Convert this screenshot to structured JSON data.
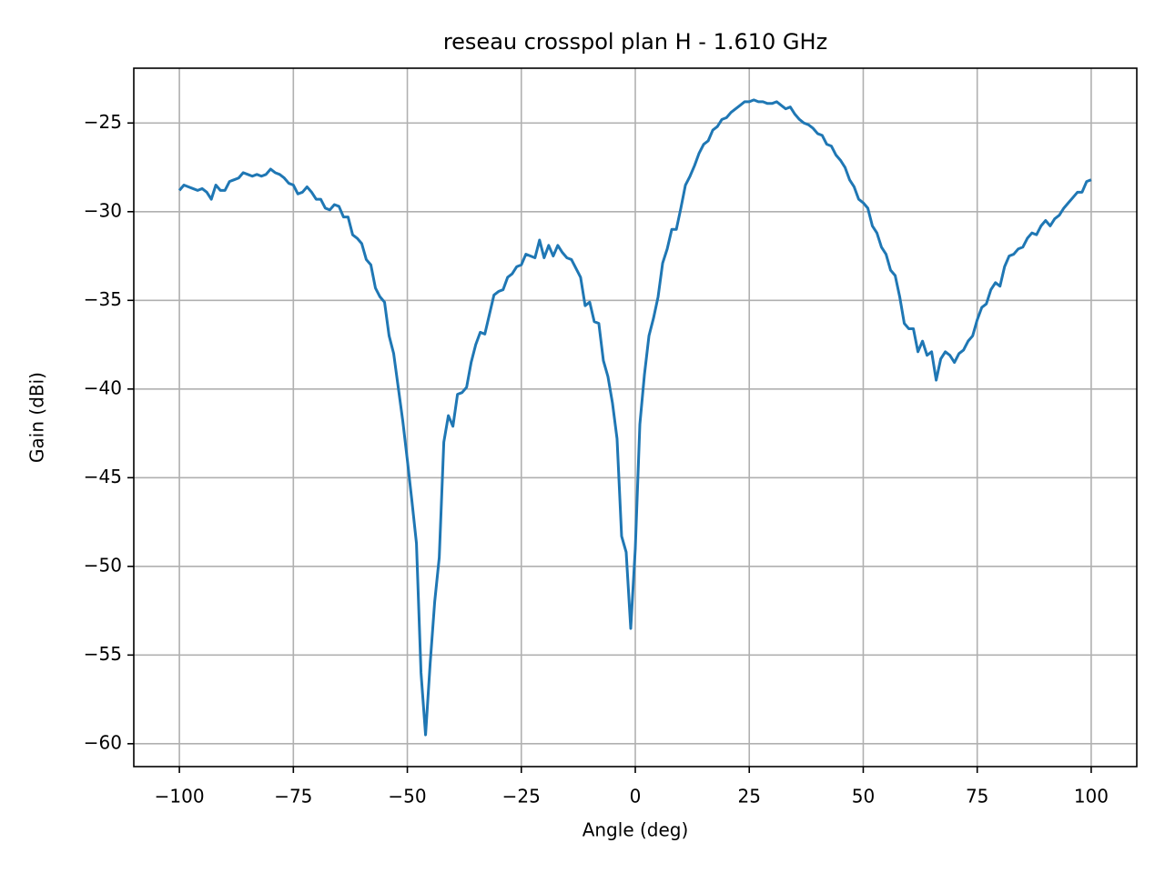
{
  "chart_data": {
    "type": "line",
    "title": "reseau crosspol plan H - 1.610 GHz",
    "x_label": "Angle (deg)",
    "y_label": "Gain (dBi)",
    "color": "#1f77b4",
    "grid": true,
    "xlim": [
      -110,
      110
    ],
    "ylim": [
      -61.29,
      -21.91
    ],
    "xticks": [
      {
        "value": -100,
        "label": "−100"
      },
      {
        "value": -75,
        "label": "−75"
      },
      {
        "value": -50,
        "label": "−50"
      },
      {
        "value": -25,
        "label": "−25"
      },
      0,
      25,
      50,
      75,
      100
    ],
    "yticks": [
      {
        "value": -60,
        "label": "−60"
      },
      {
        "value": -55,
        "label": "−55"
      },
      {
        "value": -50,
        "label": "−50"
      },
      {
        "value": -45,
        "label": "−45"
      },
      {
        "value": -40,
        "label": "−40"
      },
      {
        "value": -35,
        "label": "−35"
      },
      {
        "value": -30,
        "label": "−30"
      },
      {
        "value": -25,
        "label": "−25"
      }
    ],
    "x": [
      -100,
      -99,
      -98,
      -97,
      -96,
      -95,
      -94,
      -93,
      -92,
      -91,
      -90,
      -89,
      -88,
      -87,
      -86,
      -85,
      -84,
      -83,
      -82,
      -81,
      -80,
      -79,
      -78,
      -77,
      -76,
      -75,
      -74,
      -73,
      -72,
      -71,
      -70,
      -69,
      -68,
      -67,
      -66,
      -65,
      -64,
      -63,
      -62,
      -61,
      -60,
      -59,
      -58,
      -57,
      -56,
      -55,
      -54,
      -53,
      -52,
      -51,
      -50,
      -49,
      -48,
      -47,
      -46,
      -45,
      -44,
      -43,
      -42,
      -41,
      -40,
      -39,
      -38,
      -37,
      -36,
      -35,
      -34,
      -33,
      -32,
      -31,
      -30,
      -29,
      -28,
      -27,
      -26,
      -25,
      -24,
      -23,
      -22,
      -21,
      -20,
      -19,
      -18,
      -17,
      -16,
      -15,
      -14,
      -13,
      -12,
      -11,
      -10,
      -9,
      -8,
      -7,
      -6,
      -5,
      -4,
      -3,
      -2,
      -1,
      0,
      1,
      2,
      3,
      4,
      5,
      6,
      7,
      8,
      9,
      10,
      11,
      12,
      13,
      14,
      15,
      16,
      17,
      18,
      19,
      20,
      21,
      22,
      23,
      24,
      25,
      26,
      27,
      28,
      29,
      30,
      31,
      32,
      33,
      34,
      35,
      36,
      37,
      38,
      39,
      40,
      41,
      42,
      43,
      44,
      45,
      46,
      47,
      48,
      49,
      50,
      51,
      52,
      53,
      54,
      55,
      56,
      57,
      58,
      59,
      60,
      61,
      62,
      63,
      64,
      65,
      66,
      67,
      68,
      69,
      70,
      71,
      72,
      73,
      74,
      75,
      76,
      77,
      78,
      79,
      80,
      81,
      82,
      83,
      84,
      85,
      86,
      87,
      88,
      89,
      90,
      91,
      92,
      93,
      94,
      95,
      96,
      97,
      98,
      99,
      100
    ],
    "values": [
      -28.8,
      -28.5,
      -28.6,
      -28.7,
      -28.8,
      -28.7,
      -28.9,
      -29.3,
      -28.5,
      -28.8,
      -28.8,
      -28.3,
      -28.2,
      -28.1,
      -27.8,
      -27.9,
      -28.0,
      -27.9,
      -28.0,
      -27.9,
      -27.6,
      -27.8,
      -27.9,
      -28.1,
      -28.4,
      -28.5,
      -29.0,
      -28.9,
      -28.6,
      -28.9,
      -29.3,
      -29.3,
      -29.8,
      -29.9,
      -29.6,
      -29.7,
      -30.3,
      -30.3,
      -31.3,
      -31.5,
      -31.8,
      -32.7,
      -33.0,
      -34.3,
      -34.8,
      -35.1,
      -37.0,
      -38.0,
      -39.9,
      -41.8,
      -44.0,
      -46.3,
      -48.7,
      -56.0,
      -59.5,
      -55.5,
      -52.0,
      -49.5,
      -43.0,
      -41.5,
      -42.1,
      -40.3,
      -40.2,
      -39.9,
      -38.5,
      -37.5,
      -36.8,
      -36.9,
      -35.8,
      -34.7,
      -34.5,
      -34.4,
      -33.7,
      -33.5,
      -33.1,
      -33.0,
      -32.4,
      -32.5,
      -32.6,
      -31.6,
      -32.6,
      -31.9,
      -32.5,
      -31.9,
      -32.3,
      -32.6,
      -32.7,
      -33.2,
      -33.7,
      -35.3,
      -35.1,
      -36.2,
      -36.3,
      -38.4,
      -39.3,
      -40.8,
      -42.8,
      -48.3,
      -49.2,
      -53.5,
      -49.0,
      -42.0,
      -39.2,
      -37.0,
      -36.0,
      -34.8,
      -32.9,
      -32.1,
      -31.0,
      -31.0,
      -29.8,
      -28.5,
      -28.0,
      -27.4,
      -26.7,
      -26.2,
      -26.0,
      -25.4,
      -25.2,
      -24.8,
      -24.7,
      -24.4,
      -24.2,
      -24.0,
      -23.8,
      -23.8,
      -23.7,
      -23.8,
      -23.8,
      -23.9,
      -23.9,
      -23.8,
      -24.0,
      -24.2,
      -24.1,
      -24.5,
      -24.8,
      -25.0,
      -25.1,
      -25.3,
      -25.6,
      -25.7,
      -26.2,
      -26.3,
      -26.8,
      -27.1,
      -27.5,
      -28.2,
      -28.6,
      -29.3,
      -29.5,
      -29.8,
      -30.8,
      -31.2,
      -32.0,
      -32.4,
      -33.3,
      -33.6,
      -34.8,
      -36.3,
      -36.6,
      -36.6,
      -37.9,
      -37.3,
      -38.1,
      -37.9,
      -39.5,
      -38.3,
      -37.9,
      -38.1,
      -38.5,
      -38.0,
      -37.8,
      -37.3,
      -37.0,
      -36.1,
      -35.4,
      -35.2,
      -34.4,
      -34.0,
      -34.2,
      -33.1,
      -32.5,
      -32.4,
      -32.1,
      -32.0,
      -31.5,
      -31.2,
      -31.3,
      -30.8,
      -30.5,
      -30.8,
      -30.4,
      -30.2,
      -29.8,
      -29.5,
      -29.2,
      -28.9,
      -28.9,
      -28.3,
      -28.2
    ]
  }
}
